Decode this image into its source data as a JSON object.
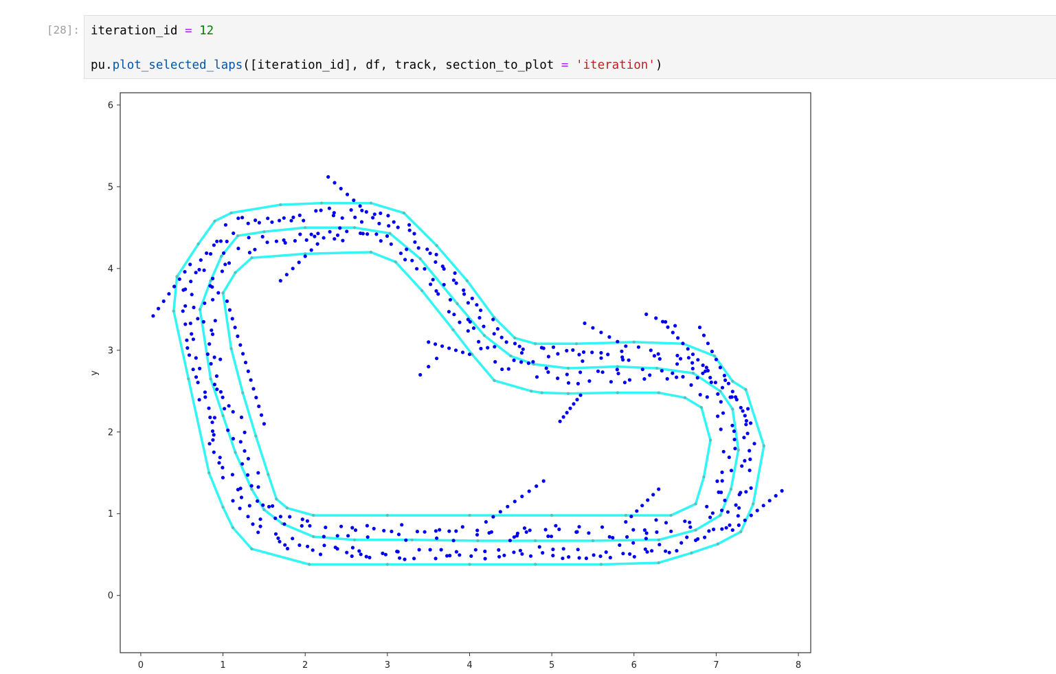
{
  "cell": {
    "prompt": "[28]:",
    "line1": {
      "var": "iteration_id",
      "op": "=",
      "num": "12"
    },
    "line2": {
      "mod": "pu",
      "fn": "plot_selected_laps",
      "args_a": "([iteration_id], df, track, section_to_plot ",
      "op": "=",
      "str": "'iteration'",
      "close": ")"
    }
  },
  "chart_data": {
    "type": "scatter",
    "title": "",
    "xlabel": "",
    "ylabel": "y",
    "xlim": [
      -0.25,
      8.15
    ],
    "ylim": [
      -0.7,
      6.15
    ],
    "xticks": [
      0,
      1,
      2,
      3,
      4,
      5,
      6,
      7,
      8
    ],
    "yticks": [
      0,
      1,
      2,
      3,
      4,
      5,
      6
    ],
    "grid": false,
    "colors": {
      "points": "#0000ee",
      "track": "#33f5f5",
      "track_marker": "#5cc0b8"
    },
    "track": {
      "outer": [
        [
          0.44,
          3.9
        ],
        [
          0.4,
          3.48
        ],
        [
          0.58,
          2.65
        ],
        [
          0.83,
          1.5
        ],
        [
          1.0,
          1.08
        ],
        [
          1.12,
          0.83
        ],
        [
          1.35,
          0.57
        ],
        [
          2.05,
          0.38
        ],
        [
          3.0,
          0.38
        ],
        [
          4.0,
          0.38
        ],
        [
          4.8,
          0.38
        ],
        [
          5.6,
          0.38
        ],
        [
          6.3,
          0.4
        ],
        [
          6.7,
          0.52
        ],
        [
          7.02,
          0.63
        ],
        [
          7.3,
          0.78
        ],
        [
          7.45,
          1.12
        ],
        [
          7.58,
          1.83
        ],
        [
          7.36,
          2.52
        ],
        [
          7.2,
          2.62
        ],
        [
          6.98,
          2.93
        ],
        [
          6.6,
          3.08
        ],
        [
          6.0,
          3.1
        ],
        [
          5.3,
          3.08
        ],
        [
          4.8,
          3.08
        ],
        [
          4.55,
          3.15
        ],
        [
          4.3,
          3.4
        ],
        [
          3.97,
          3.85
        ],
        [
          3.6,
          4.28
        ],
        [
          3.2,
          4.68
        ],
        [
          2.8,
          4.8
        ],
        [
          2.2,
          4.8
        ],
        [
          1.7,
          4.78
        ],
        [
          1.1,
          4.68
        ],
        [
          0.9,
          4.58
        ],
        [
          0.7,
          4.3
        ],
        [
          0.44,
          3.9
        ]
      ],
      "center": [
        [
          0.72,
          3.5
        ],
        [
          0.85,
          2.65
        ],
        [
          1.0,
          2.2
        ],
        [
          1.15,
          1.75
        ],
        [
          1.35,
          1.3
        ],
        [
          1.5,
          1.05
        ],
        [
          1.72,
          0.88
        ],
        [
          2.1,
          0.72
        ],
        [
          2.6,
          0.68
        ],
        [
          3.3,
          0.68
        ],
        [
          4.1,
          0.67
        ],
        [
          4.8,
          0.67
        ],
        [
          5.5,
          0.67
        ],
        [
          6.3,
          0.68
        ],
        [
          6.75,
          0.8
        ],
        [
          7.05,
          0.98
        ],
        [
          7.18,
          1.3
        ],
        [
          7.27,
          1.78
        ],
        [
          7.2,
          2.28
        ],
        [
          7.05,
          2.5
        ],
        [
          6.72,
          2.72
        ],
        [
          6.28,
          2.78
        ],
        [
          5.8,
          2.8
        ],
        [
          5.2,
          2.78
        ],
        [
          4.78,
          2.83
        ],
        [
          4.5,
          2.93
        ],
        [
          4.18,
          3.18
        ],
        [
          3.85,
          3.57
        ],
        [
          3.4,
          4.12
        ],
        [
          3.03,
          4.43
        ],
        [
          2.6,
          4.5
        ],
        [
          2.0,
          4.5
        ],
        [
          1.5,
          4.45
        ],
        [
          1.18,
          4.4
        ],
        [
          0.98,
          4.15
        ],
        [
          0.85,
          3.85
        ],
        [
          0.72,
          3.5
        ]
      ],
      "inner": [
        [
          1.0,
          3.7
        ],
        [
          1.1,
          3.02
        ],
        [
          1.24,
          2.48
        ],
        [
          1.4,
          1.95
        ],
        [
          1.55,
          1.48
        ],
        [
          1.65,
          1.18
        ],
        [
          1.78,
          1.07
        ],
        [
          2.1,
          0.98
        ],
        [
          3.0,
          0.98
        ],
        [
          4.0,
          0.98
        ],
        [
          5.0,
          0.98
        ],
        [
          5.9,
          0.98
        ],
        [
          6.45,
          0.98
        ],
        [
          6.75,
          1.12
        ],
        [
          6.85,
          1.45
        ],
        [
          6.93,
          1.9
        ],
        [
          6.82,
          2.3
        ],
        [
          6.62,
          2.42
        ],
        [
          6.3,
          2.48
        ],
        [
          5.8,
          2.48
        ],
        [
          5.2,
          2.47
        ],
        [
          4.88,
          2.48
        ],
        [
          4.75,
          2.5
        ],
        [
          4.3,
          2.63
        ],
        [
          4.03,
          2.95
        ],
        [
          3.8,
          3.25
        ],
        [
          3.42,
          3.73
        ],
        [
          3.1,
          4.08
        ],
        [
          2.8,
          4.2
        ],
        [
          2.0,
          4.18
        ],
        [
          1.35,
          4.13
        ],
        [
          1.15,
          3.95
        ],
        [
          1.0,
          3.7
        ]
      ]
    }
  }
}
